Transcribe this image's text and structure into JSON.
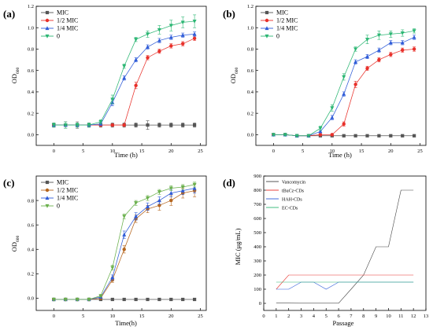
{
  "figure": {
    "panels": [
      {
        "id": "a",
        "label": "(a)",
        "xlabel": "Time (h)",
        "ylabel": "OD",
        "ylabel_sub": "600"
      },
      {
        "id": "b",
        "label": "(b)",
        "xlabel": "Time (h)",
        "ylabel": "OD",
        "ylabel_sub": "600"
      },
      {
        "id": "c",
        "label": "(c)",
        "xlabel": "Time(h)",
        "ylabel": "OD",
        "ylabel_sub": "600"
      },
      {
        "id": "d",
        "label": "(d)",
        "xlabel": "Passage",
        "ylabel": "MIC (μg/mL)",
        "ylabel_sub": ""
      }
    ]
  },
  "chart_data": [
    {
      "panel": "a",
      "type": "line",
      "xlabel": "Time (h)",
      "ylabel": "OD600",
      "xlim": [
        -3,
        26
      ],
      "ylim": [
        -0.1,
        1.2
      ],
      "xticks": [
        0,
        5,
        10,
        15,
        20,
        25
      ],
      "yticks": [
        0.0,
        0.2,
        0.4,
        0.6,
        0.8,
        1.0,
        1.2
      ],
      "yticks_text": [
        "0.0",
        "0.2",
        "0.4",
        "0.6",
        "0.8",
        "1.0",
        "1.2"
      ],
      "x": [
        0,
        2,
        4,
        6,
        8,
        10,
        12,
        14,
        16,
        18,
        20,
        22,
        24
      ],
      "legend": "top-left",
      "series": [
        {
          "name": "MIC",
          "color": "#555555",
          "marker": "square",
          "values": [
            0.09,
            0.09,
            0.09,
            0.09,
            0.09,
            0.09,
            0.09,
            0.09,
            0.09,
            0.09,
            0.09,
            0.09,
            0.09
          ],
          "errors": [
            0.02,
            0.03,
            0.03,
            0.02,
            0.02,
            0.02,
            0.02,
            0.02,
            0.04,
            0.02,
            0.02,
            0.02,
            0.02
          ]
        },
        {
          "name": "1/2 MIC",
          "color": "#e8302a",
          "marker": "circle",
          "values": [
            0.09,
            0.09,
            0.09,
            0.09,
            0.09,
            0.09,
            0.09,
            0.46,
            0.72,
            0.78,
            0.83,
            0.85,
            0.9
          ],
          "errors": [
            0.01,
            0.01,
            0.01,
            0.01,
            0.01,
            0.01,
            0.01,
            0.03,
            0.02,
            0.02,
            0.02,
            0.02,
            0.02
          ]
        },
        {
          "name": "1/4 MIC",
          "color": "#2f5cd8",
          "marker": "triangle-up",
          "values": [
            0.09,
            0.09,
            0.09,
            0.09,
            0.1,
            0.3,
            0.53,
            0.7,
            0.82,
            0.88,
            0.91,
            0.93,
            0.94
          ],
          "errors": [
            0.01,
            0.01,
            0.01,
            0.01,
            0.01,
            0.03,
            0.02,
            0.02,
            0.02,
            0.02,
            0.02,
            0.02,
            0.02
          ]
        },
        {
          "name": "0",
          "color": "#2bb673",
          "marker": "triangle-down",
          "values": [
            0.09,
            0.09,
            0.09,
            0.09,
            0.12,
            0.33,
            0.64,
            0.89,
            0.94,
            0.98,
            1.02,
            1.05,
            1.06
          ],
          "errors": [
            0.02,
            0.03,
            0.02,
            0.02,
            0.02,
            0.04,
            0.02,
            0.02,
            0.03,
            0.04,
            0.05,
            0.05,
            0.06
          ]
        }
      ]
    },
    {
      "panel": "b",
      "type": "line",
      "xlabel": "Time (h)",
      "ylabel": "OD600",
      "xlim": [
        -3,
        26
      ],
      "ylim": [
        -0.1,
        1.2
      ],
      "xticks": [
        0,
        5,
        10,
        15,
        20,
        25
      ],
      "yticks": [
        0.0,
        0.2,
        0.4,
        0.6,
        0.8,
        1.0,
        1.2
      ],
      "yticks_text": [
        "0.0",
        "0.2",
        "0.4",
        "0.6",
        "0.8",
        "1.0",
        "1.2"
      ],
      "x": [
        0,
        2,
        4,
        6,
        8,
        10,
        12,
        14,
        16,
        18,
        20,
        22,
        24
      ],
      "legend": "top-left",
      "series": [
        {
          "name": "MIC",
          "color": "#555555",
          "marker": "square",
          "values": [
            0.0,
            0.0,
            -0.01,
            -0.01,
            -0.01,
            -0.01,
            -0.01,
            -0.01,
            -0.01,
            -0.01,
            -0.01,
            -0.01,
            -0.01
          ],
          "errors": [
            0.01,
            0.01,
            0.01,
            0.01,
            0.01,
            0.01,
            0.01,
            0.01,
            0.01,
            0.01,
            0.01,
            0.01,
            0.01
          ]
        },
        {
          "name": "1/2 MIC",
          "color": "#e8302a",
          "marker": "circle",
          "values": [
            0.0,
            0.0,
            -0.01,
            -0.01,
            0.0,
            0.0,
            0.1,
            0.47,
            0.62,
            0.7,
            0.75,
            0.79,
            0.8
          ],
          "errors": [
            0.01,
            0.01,
            0.01,
            0.01,
            0.01,
            0.01,
            0.02,
            0.03,
            0.02,
            0.02,
            0.02,
            0.02,
            0.02
          ]
        },
        {
          "name": "1/4 MIC",
          "color": "#2f5cd8",
          "marker": "triangle-up",
          "values": [
            0.0,
            0.0,
            -0.01,
            -0.01,
            0.03,
            0.16,
            0.38,
            0.68,
            0.73,
            0.79,
            0.86,
            0.86,
            0.91
          ],
          "errors": [
            0.01,
            0.01,
            0.01,
            0.01,
            0.01,
            0.02,
            0.02,
            0.02,
            0.02,
            0.02,
            0.02,
            0.02,
            0.02
          ]
        },
        {
          "name": "0",
          "color": "#2bb673",
          "marker": "triangle-down",
          "values": [
            0.0,
            0.0,
            -0.01,
            -0.01,
            0.06,
            0.25,
            0.54,
            0.8,
            0.89,
            0.93,
            0.94,
            0.95,
            0.97
          ],
          "errors": [
            0.01,
            0.01,
            0.01,
            0.01,
            0.02,
            0.03,
            0.03,
            0.02,
            0.04,
            0.04,
            0.03,
            0.03,
            0.02
          ]
        }
      ]
    },
    {
      "panel": "c",
      "type": "line",
      "xlabel": "Time(h)",
      "ylabel": "OD600",
      "xlim": [
        -3,
        26
      ],
      "ylim": [
        -0.1,
        1.0
      ],
      "xticks": [
        0,
        5,
        10,
        15,
        20,
        25
      ],
      "yticks": [
        0.0,
        0.2,
        0.4,
        0.6,
        0.8
      ],
      "yticks_text": [
        "0.0",
        "0.2",
        "0.4",
        "0.6",
        "0.8"
      ],
      "x": [
        0,
        2,
        4,
        6,
        8,
        10,
        12,
        14,
        16,
        18,
        20,
        22,
        24
      ],
      "legend": "top-left",
      "series": [
        {
          "name": "MIC",
          "color": "#555555",
          "marker": "square",
          "values": [
            -0.01,
            -0.01,
            -0.01,
            -0.01,
            -0.01,
            -0.01,
            -0.01,
            -0.01,
            -0.01,
            -0.01,
            -0.01,
            -0.01,
            -0.01
          ],
          "errors": [
            0.01,
            0.01,
            0.01,
            0.01,
            0.01,
            0.01,
            0.01,
            0.01,
            0.01,
            0.01,
            0.01,
            0.01,
            0.01
          ]
        },
        {
          "name": "1/2 MIC",
          "color": "#b5651d",
          "marker": "circle",
          "values": [
            -0.01,
            -0.01,
            -0.01,
            -0.01,
            0.0,
            0.15,
            0.4,
            0.65,
            0.73,
            0.76,
            0.8,
            0.86,
            0.88
          ],
          "errors": [
            0.01,
            0.01,
            0.01,
            0.01,
            0.01,
            0.02,
            0.03,
            0.03,
            0.03,
            0.04,
            0.04,
            0.04,
            0.05
          ]
        },
        {
          "name": "1/4 MIC",
          "color": "#2f5cd8",
          "marker": "triangle-up",
          "values": [
            -0.01,
            -0.01,
            -0.01,
            -0.01,
            0.01,
            0.17,
            0.52,
            0.67,
            0.75,
            0.8,
            0.86,
            0.88,
            0.9
          ],
          "errors": [
            0.01,
            0.01,
            0.01,
            0.01,
            0.01,
            0.02,
            0.03,
            0.03,
            0.03,
            0.03,
            0.03,
            0.03,
            0.04
          ]
        },
        {
          "name": "0",
          "color": "#6ab04c",
          "marker": "triangle-down",
          "values": [
            -0.01,
            -0.01,
            -0.01,
            -0.01,
            0.02,
            0.25,
            0.67,
            0.78,
            0.82,
            0.87,
            0.9,
            0.91,
            0.93
          ],
          "errors": [
            0.01,
            0.01,
            0.01,
            0.01,
            0.01,
            0.02,
            0.02,
            0.02,
            0.02,
            0.02,
            0.02,
            0.02,
            0.02
          ]
        }
      ]
    },
    {
      "panel": "d",
      "type": "line",
      "xlabel": "Passage",
      "ylabel": "MIC (μg/mL)",
      "xlim": [
        0,
        13
      ],
      "ylim": [
        -50,
        900
      ],
      "xticks": [
        0,
        1,
        2,
        3,
        4,
        5,
        6,
        7,
        8,
        9,
        10,
        11,
        12,
        13
      ],
      "yticks": [
        0,
        100,
        200,
        300,
        400,
        500,
        600,
        700,
        800,
        900
      ],
      "yticks_text": [
        "0",
        "100",
        "200",
        "300",
        "400",
        "500",
        "600",
        "700",
        "800",
        "900"
      ],
      "legend": "top-left",
      "series": [
        {
          "name": "Vancomycin",
          "color": "#444444",
          "marker": "none",
          "x": [
            1,
            2,
            3,
            4,
            5,
            6,
            7,
            8,
            9,
            10,
            11,
            12
          ],
          "values": [
            3,
            2,
            1,
            1,
            1,
            1,
            100,
            200,
            400,
            400,
            800,
            800
          ]
        },
        {
          "name": "tBuCz-CDs",
          "color": "#e8302a",
          "marker": "none",
          "x": [
            1,
            2,
            3,
            4,
            5,
            6,
            7,
            8,
            9,
            10,
            11,
            12
          ],
          "values": [
            100,
            200,
            200,
            200,
            200,
            200,
            200,
            200,
            200,
            200,
            200,
            200
          ]
        },
        {
          "name": "HAH-CDs",
          "color": "#2f5cd8",
          "marker": "none",
          "x": [
            1,
            2,
            3,
            4,
            5,
            6,
            7,
            8,
            9,
            10,
            11,
            12
          ],
          "values": [
            100,
            100,
            150,
            150,
            100,
            150,
            150,
            150,
            150,
            150,
            150,
            150
          ]
        },
        {
          "name": "EC-CDs",
          "color": "#2bb673",
          "marker": "none",
          "x": [
            1,
            2,
            3,
            4,
            5,
            6,
            7,
            8,
            9,
            10,
            11,
            12
          ],
          "values": [
            150,
            150,
            150,
            150,
            150,
            150,
            150,
            150,
            150,
            150,
            150,
            150
          ]
        }
      ]
    }
  ]
}
